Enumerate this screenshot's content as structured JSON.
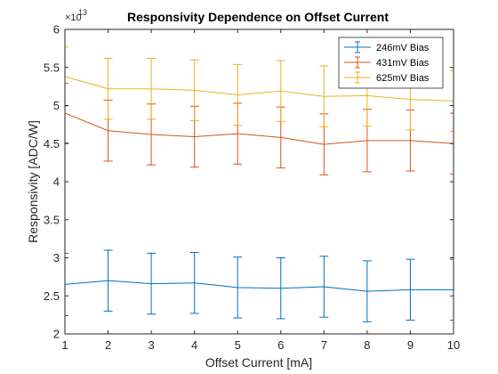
{
  "chart_data": {
    "type": "line",
    "title": "Responsivity Dependence on Offset Current",
    "xlabel": "Offset Current [mA]",
    "ylabel": "Responsivity [ADC/W]",
    "y_exponent_label": "×10",
    "y_exponent": "13",
    "xlim": [
      1,
      10
    ],
    "ylim": [
      2,
      6
    ],
    "xticks": [
      1,
      2,
      3,
      4,
      5,
      6,
      7,
      8,
      9,
      10
    ],
    "yticks": [
      2,
      2.5,
      3,
      3.5,
      4,
      4.5,
      5,
      5.5,
      6
    ],
    "ytick_labels": [
      "2",
      "2.5",
      "3",
      "3.5",
      "4",
      "4.5",
      "5",
      "5.5",
      "6"
    ],
    "grid": false,
    "legend_position": "top-right",
    "x": [
      1,
      2,
      3,
      4,
      5,
      6,
      7,
      8,
      9,
      10
    ],
    "series": [
      {
        "name": "246mV Bias",
        "color": "#0072BD",
        "values": [
          2.65,
          2.7,
          2.66,
          2.67,
          2.61,
          2.6,
          2.62,
          2.56,
          2.58,
          2.58
        ],
        "error": [
          0.41,
          0.4,
          0.4,
          0.4,
          0.4,
          0.4,
          0.4,
          0.4,
          0.4,
          0.4
        ]
      },
      {
        "name": "431mV Bias",
        "color": "#D95319",
        "values": [
          4.9,
          4.67,
          4.62,
          4.59,
          4.63,
          4.58,
          4.49,
          4.54,
          4.54,
          4.5
        ],
        "error": [
          0.39,
          0.4,
          0.4,
          0.4,
          0.4,
          0.4,
          0.4,
          0.41,
          0.4,
          0.4
        ]
      },
      {
        "name": "625mV Bias",
        "color": "#EDB120",
        "values": [
          5.38,
          5.22,
          5.22,
          5.2,
          5.14,
          5.19,
          5.12,
          5.13,
          5.08,
          5.06
        ],
        "error": [
          0.39,
          0.4,
          0.4,
          0.4,
          0.4,
          0.4,
          0.4,
          0.4,
          0.4,
          0.4
        ]
      }
    ]
  }
}
